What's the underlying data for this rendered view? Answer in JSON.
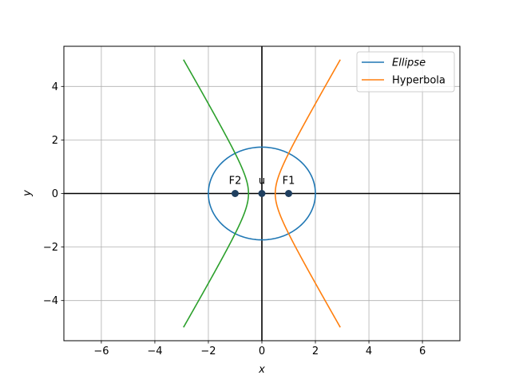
{
  "chart_data": {
    "type": "line",
    "xlabel": "x",
    "ylabel": "y",
    "xlim": [
      -7.4,
      7.4
    ],
    "ylim": [
      -5.5,
      5.5
    ],
    "xticks": [
      -6,
      -4,
      -2,
      0,
      2,
      4,
      6
    ],
    "yticks": [
      -4,
      -2,
      0,
      2,
      4
    ],
    "xtick_labels": [
      "−6",
      "−4",
      "−2",
      "0",
      "2",
      "4",
      "6"
    ],
    "ytick_labels": [
      "−4",
      "−2",
      "0",
      "2",
      "4"
    ],
    "grid": true,
    "legend_position": "top-right",
    "series": [
      {
        "name": "Ellipse",
        "kind": "ellipse",
        "center": [
          0,
          0
        ],
        "a": 2,
        "b": 1.732,
        "color": "#1f77b4",
        "legend_italic": true
      },
      {
        "name": "Hyperbola",
        "kind": "hyperbola-right",
        "a": 0.5,
        "b": 0.866,
        "y_range": [
          -5,
          5
        ],
        "color": "#ff7f0e"
      },
      {
        "kind": "hyperbola-left",
        "a": 0.5,
        "b": 0.866,
        "y_range": [
          -5,
          5
        ],
        "color": "#2ca02c"
      }
    ],
    "axis_lines": {
      "color": "#000000"
    },
    "points": [
      {
        "label": "F2",
        "x": -1,
        "y": 0
      },
      {
        "label": "u",
        "x": 0,
        "y": 0
      },
      {
        "label": "F1",
        "x": 1,
        "y": 0
      }
    ],
    "point_color": "#1f3f5f"
  }
}
